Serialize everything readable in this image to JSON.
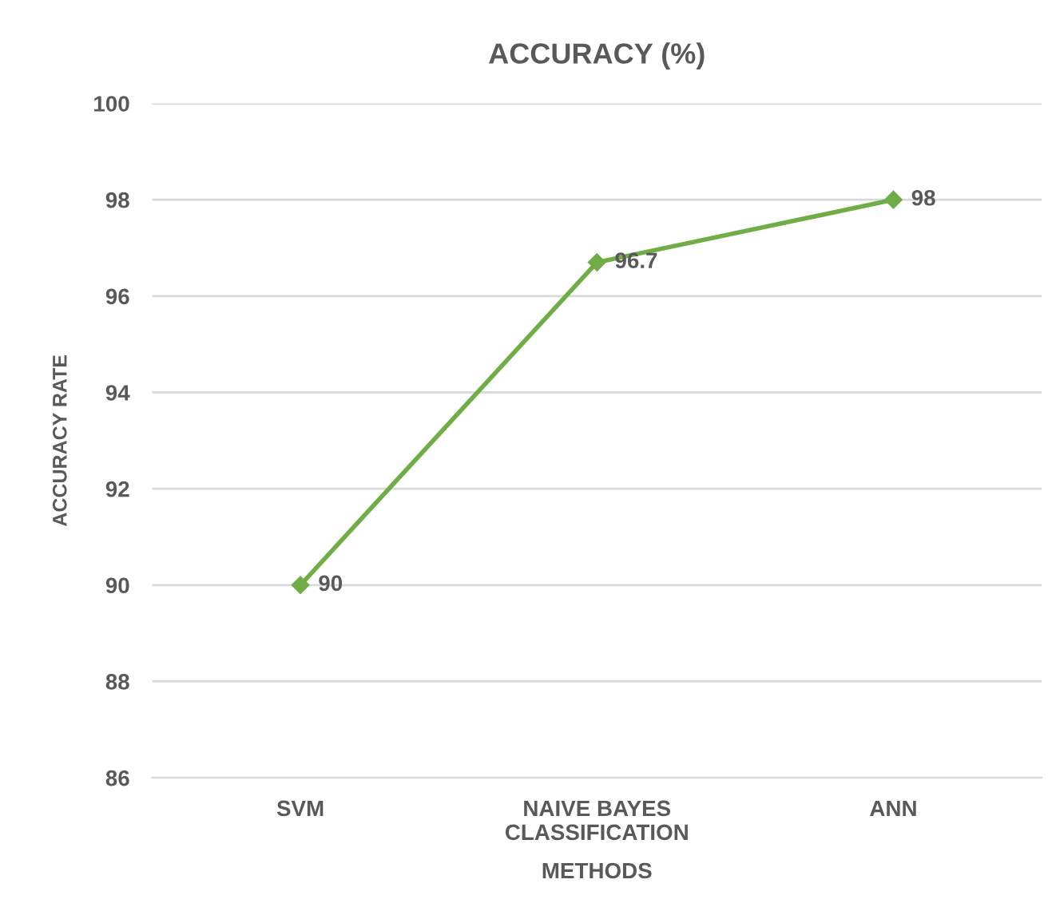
{
  "chart_data": {
    "type": "line",
    "title": "ACCURACY (%)",
    "xlabel": "METHODS",
    "ylabel": "ACCURACY RATE",
    "categories": [
      "SVM",
      "NAIVE BAYES\nCLASSIFICATION",
      "ANN"
    ],
    "series": [
      {
        "color": "#70ad47",
        "values": [
          90,
          96.7,
          98
        ]
      }
    ],
    "ylim": [
      86,
      100
    ],
    "yticks": [
      86,
      88,
      90,
      92,
      94,
      96,
      98,
      100
    ],
    "grid": "y",
    "marker": "diamond",
    "line_style": "solid",
    "data_labels": true
  }
}
